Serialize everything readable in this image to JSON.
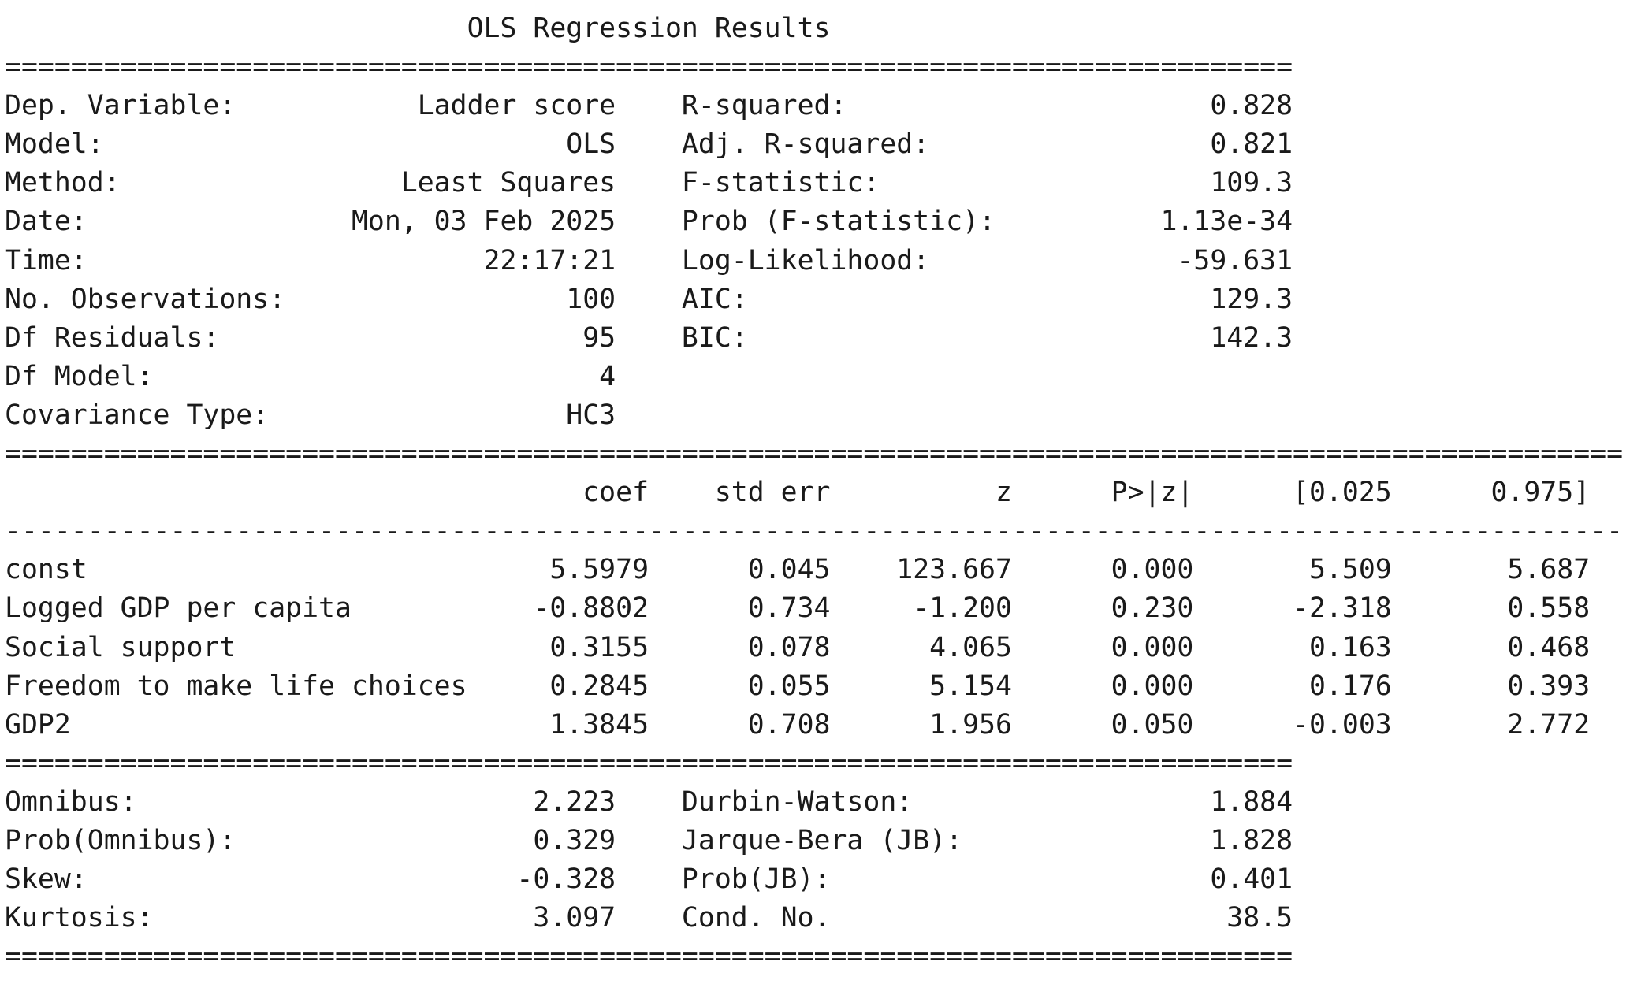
{
  "title": "OLS Regression Results",
  "sep_double_short": "==============================================================================",
  "sep_double_long": "==================================================================================================",
  "sep_single_long": "--------------------------------------------------------------------------------------------------",
  "model_info": [
    {
      "left_label": "Dep. Variable:",
      "left_value": "Ladder score",
      "right_label": "R-squared:",
      "right_value": "0.828"
    },
    {
      "left_label": "Model:",
      "left_value": "OLS",
      "right_label": "Adj. R-squared:",
      "right_value": "0.821"
    },
    {
      "left_label": "Method:",
      "left_value": "Least Squares",
      "right_label": "F-statistic:",
      "right_value": "109.3"
    },
    {
      "left_label": "Date:",
      "left_value": "Mon, 03 Feb 2025",
      "right_label": "Prob (F-statistic):",
      "right_value": "1.13e-34"
    },
    {
      "left_label": "Time:",
      "left_value": "22:17:21",
      "right_label": "Log-Likelihood:",
      "right_value": "-59.631"
    },
    {
      "left_label": "No. Observations:",
      "left_value": "100",
      "right_label": "AIC:",
      "right_value": "129.3"
    },
    {
      "left_label": "Df Residuals:",
      "left_value": "95",
      "right_label": "BIC:",
      "right_value": "142.3"
    },
    {
      "left_label": "Df Model:",
      "left_value": "4",
      "right_label": "",
      "right_value": ""
    },
    {
      "left_label": "Covariance Type:",
      "left_value": "HC3",
      "right_label": "",
      "right_value": ""
    }
  ],
  "coef_headers": [
    "coef",
    "std err",
    "z",
    "P>|z|",
    "[0.025",
    "0.975]"
  ],
  "coef_rows": [
    {
      "name": "const",
      "values": [
        "5.5979",
        "0.045",
        "123.667",
        "0.000",
        "5.509",
        "5.687"
      ]
    },
    {
      "name": "Logged GDP per capita",
      "values": [
        "-0.8802",
        "0.734",
        "-1.200",
        "0.230",
        "-2.318",
        "0.558"
      ]
    },
    {
      "name": "Social support",
      "values": [
        "0.3155",
        "0.078",
        "4.065",
        "0.000",
        "0.163",
        "0.468"
      ]
    },
    {
      "name": "Freedom to make life choices",
      "values": [
        "0.2845",
        "0.055",
        "5.154",
        "0.000",
        "0.176",
        "0.393"
      ]
    },
    {
      "name": "GDP2",
      "values": [
        "1.3845",
        "0.708",
        "1.956",
        "0.050",
        "-0.003",
        "2.772"
      ]
    }
  ],
  "diagnostics": [
    {
      "left_label": "Omnibus:",
      "left_value": "2.223",
      "right_label": "Durbin-Watson:",
      "right_value": "1.884"
    },
    {
      "left_label": "Prob(Omnibus):",
      "left_value": "0.329",
      "right_label": "Jarque-Bera (JB):",
      "right_value": "1.828"
    },
    {
      "left_label": "Skew:",
      "left_value": "-0.328",
      "right_label": "Prob(JB):",
      "right_value": "0.401"
    },
    {
      "left_label": "Kurtosis:",
      "left_value": "3.097",
      "right_label": "Cond. No.",
      "right_value": "38.5"
    }
  ]
}
